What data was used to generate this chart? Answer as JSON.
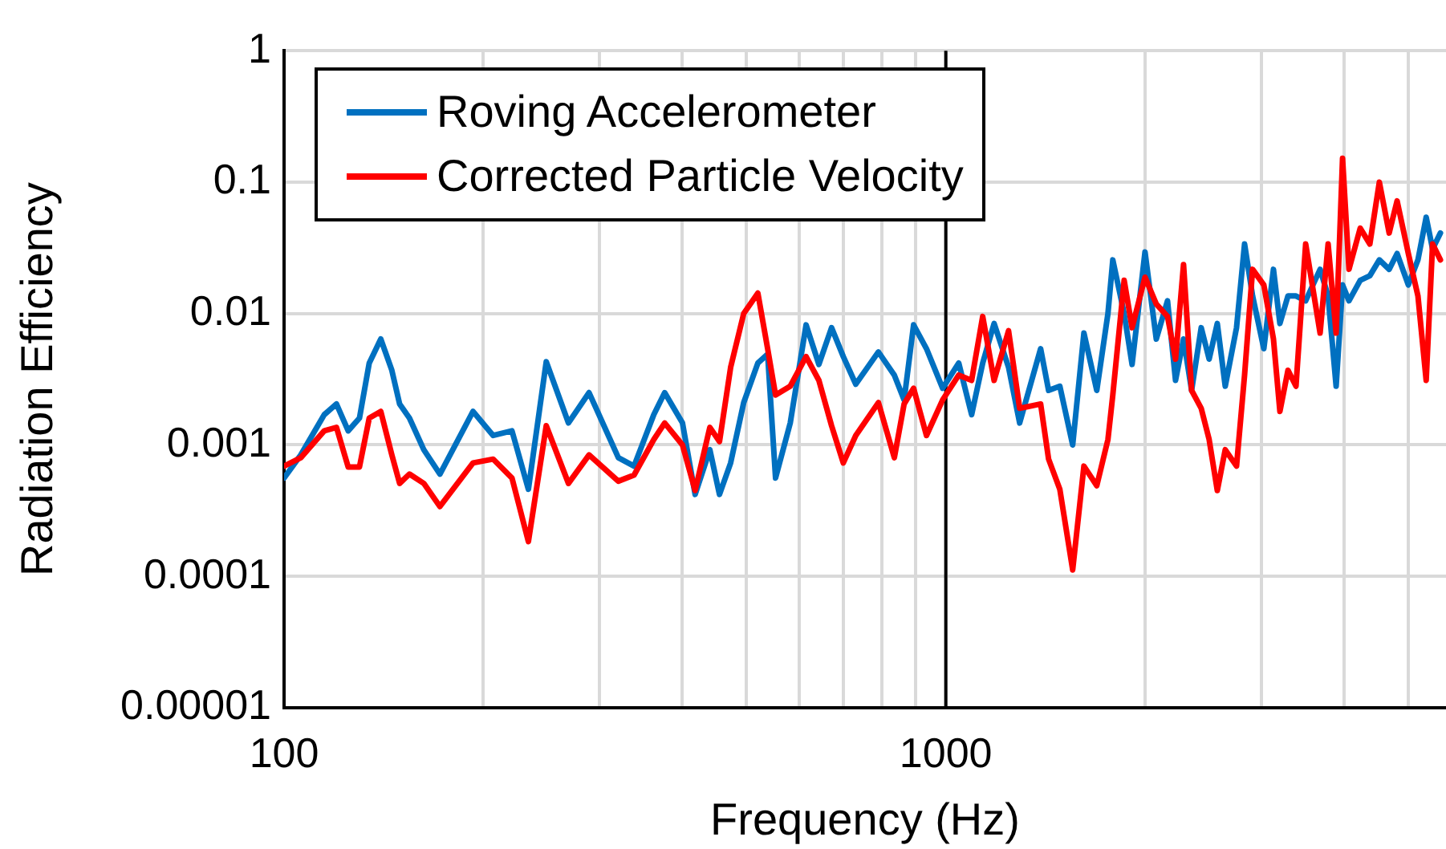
{
  "chart_data": {
    "type": "line",
    "xlabel": "Frequency (Hz)",
    "ylabel": "Radiation Efficiency",
    "log": "xy",
    "grid": true,
    "legend": "top left",
    "line_style": "solid",
    "marker": "none",
    "xlim": [
      100,
      5700
    ],
    "xticks": [
      100,
      {
        "value": 200,
        "label": null
      },
      {
        "value": 300,
        "label": null
      },
      {
        "value": 400,
        "label": null
      },
      {
        "value": 500,
        "label": null
      },
      {
        "value": 600,
        "label": null
      },
      {
        "value": 700,
        "label": null
      },
      {
        "value": 800,
        "label": null
      },
      {
        "value": 900,
        "label": null
      },
      1000,
      {
        "value": 2000,
        "label": null
      },
      {
        "value": 3000,
        "label": null
      },
      {
        "value": 4000,
        "label": null
      },
      {
        "value": 5000,
        "label": null
      }
    ],
    "ylim": [
      1e-05,
      1
    ],
    "yticks": [
      {
        "value": 1e-05,
        "label": "0.00001"
      },
      0.0001,
      0.001,
      0.01,
      0.1,
      1
    ],
    "ref_lines": [
      {
        "axis": "x",
        "value": 1000,
        "color": "#000000"
      }
    ],
    "series": [
      {
        "name": "Roving Accelerometer",
        "color": "#0070c0",
        "x": [
          100,
          106,
          115,
          120,
          125,
          130,
          134.5,
          140,
          145.5,
          149.5,
          154.7,
          162.6,
          172,
          193,
          207,
          221,
          234,
          249,
          269,
          289,
          320,
          338,
          362,
          376,
          400,
          418,
          440,
          455,
          473,
          495,
          520,
          538,
          553,
          582,
          615,
          643,
          672,
          700,
          731,
          791,
          836,
          865,
          894,
          935,
          989,
          1046,
          1094,
          1137,
          1183,
          1244,
          1293,
          1391,
          1430,
          1487,
          1555,
          1617,
          1691,
          1758,
          1788,
          1860,
          1912,
          2000,
          2080,
          2163,
          2224,
          2287,
          2352,
          2432,
          2500,
          2572,
          2644,
          2750,
          2828,
          2908,
          3024,
          3127,
          3198,
          3289,
          3382,
          3498,
          3678,
          3782,
          3889,
          3977,
          4067,
          4229,
          4373,
          4520,
          4677,
          4808,
          5000,
          5170,
          5320,
          5440,
          5590
        ],
        "values": [
          0.00056,
          0.00084,
          0.0017,
          0.00205,
          0.00128,
          0.0016,
          0.0042,
          0.0064,
          0.0037,
          0.00205,
          0.0016,
          0.00092,
          0.0006,
          0.0018,
          0.00118,
          0.00128,
          0.00046,
          0.0043,
          0.00147,
          0.0025,
          0.0008,
          0.00069,
          0.0017,
          0.0025,
          0.00147,
          0.00042,
          0.00092,
          0.00042,
          0.00073,
          0.0021,
          0.0042,
          0.0049,
          0.00056,
          0.00147,
          0.0082,
          0.0041,
          0.0078,
          0.0047,
          0.0029,
          0.0051,
          0.0034,
          0.0022,
          0.0082,
          0.0054,
          0.0027,
          0.0042,
          0.0017,
          0.0042,
          0.0084,
          0.0039,
          0.00147,
          0.0054,
          0.0026,
          0.0028,
          0.001,
          0.0071,
          0.0026,
          0.01,
          0.0256,
          0.01,
          0.0041,
          0.0294,
          0.0064,
          0.0125,
          0.0031,
          0.0064,
          0.0026,
          0.0078,
          0.0045,
          0.0084,
          0.0028,
          0.0078,
          0.0338,
          0.0136,
          0.0054,
          0.0217,
          0.0084,
          0.0136,
          0.0136,
          0.0125,
          0.0217,
          0.0136,
          0.0028,
          0.0165,
          0.0125,
          0.0179,
          0.0194,
          0.0256,
          0.0217,
          0.0286,
          0.0165,
          0.0256,
          0.054,
          0.031,
          0.041
        ]
      },
      {
        "name": "Corrected Particle Velocity",
        "color": "#ff0000",
        "x": [
          100,
          106,
          115,
          120,
          125,
          130,
          134.5,
          140,
          145.5,
          149.5,
          154.7,
          162.6,
          172,
          193,
          207,
          221,
          234,
          249,
          269,
          289,
          320,
          338,
          362,
          376,
          400,
          418,
          440,
          455,
          473,
          495,
          520,
          538,
          553,
          582,
          615,
          643,
          672,
          700,
          731,
          791,
          836,
          865,
          894,
          935,
          989,
          1046,
          1094,
          1137,
          1183,
          1244,
          1293,
          1391,
          1430,
          1487,
          1555,
          1617,
          1691,
          1758,
          1788,
          1860,
          1912,
          2000,
          2080,
          2163,
          2224,
          2287,
          2352,
          2432,
          2500,
          2572,
          2644,
          2750,
          2828,
          2908,
          3024,
          3127,
          3198,
          3289,
          3382,
          3498,
          3678,
          3782,
          3889,
          3977,
          4067,
          4229,
          4373,
          4520,
          4677,
          4808,
          5000,
          5170,
          5320,
          5440,
          5590
        ],
        "values": [
          0.00069,
          0.0008,
          0.00128,
          0.00136,
          0.00068,
          0.00068,
          0.0016,
          0.0018,
          0.00084,
          0.00051,
          0.0006,
          0.00051,
          0.00034,
          0.00073,
          0.00078,
          0.00056,
          0.000184,
          0.0014,
          0.00051,
          0.00084,
          0.00053,
          0.00059,
          0.0011,
          0.00147,
          0.001,
          0.00045,
          0.00136,
          0.00106,
          0.0039,
          0.01,
          0.0143,
          0.0054,
          0.0024,
          0.0028,
          0.0047,
          0.0031,
          0.0014,
          0.00073,
          0.00118,
          0.0021,
          0.0008,
          0.00205,
          0.0027,
          0.00118,
          0.0022,
          0.0034,
          0.0031,
          0.0095,
          0.0031,
          0.0074,
          0.0019,
          0.00205,
          0.00078,
          0.00046,
          0.000112,
          0.00069,
          0.00049,
          0.0011,
          0.0024,
          0.0179,
          0.0078,
          0.0189,
          0.0118,
          0.0095,
          0.0045,
          0.0236,
          0.0026,
          0.0019,
          0.0011,
          0.00045,
          0.00092,
          0.00069,
          0.0034,
          0.0217,
          0.0165,
          0.0064,
          0.0018,
          0.0037,
          0.0028,
          0.0338,
          0.0071,
          0.0338,
          0.0071,
          0.152,
          0.0217,
          0.0446,
          0.0338,
          0.1,
          0.041,
          0.072,
          0.0286,
          0.0136,
          0.0031,
          0.0338,
          0.0256
        ]
      }
    ]
  }
}
